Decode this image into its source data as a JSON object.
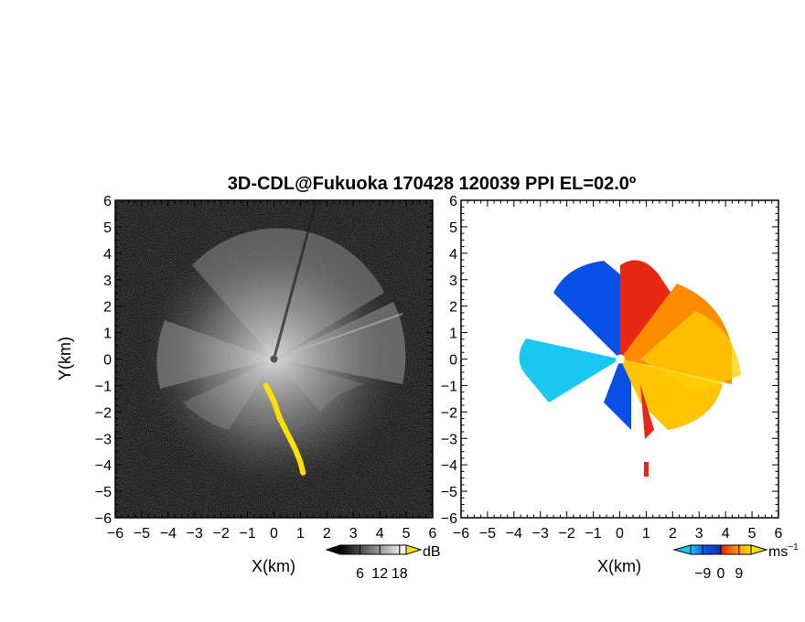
{
  "figure": {
    "title": "3D-CDL@Fukuoka 170428 120039 PPI EL=02.0º"
  },
  "colors": {
    "background_reflectivity": "#1e1e1e",
    "echo_gray": "#c8c8c8",
    "highlight_yellow": "#ffe000",
    "frame": "#000000",
    "vel_cyan": "#19c7f0",
    "vel_blue": "#0a50e6",
    "vel_red": "#e62814",
    "vel_orange": "#ff8c00",
    "vel_yellow": "#ffd000"
  },
  "chart_data": [
    {
      "type": "heatmap",
      "name": "reflectivity_ppi",
      "xlabel": "X(km)",
      "ylabel": "Y(km)",
      "xlim": [
        -6,
        6
      ],
      "ylim": [
        -6,
        6
      ],
      "xticks": [
        -6,
        -5,
        -4,
        -3,
        -2,
        -1,
        0,
        1,
        2,
        3,
        4,
        5,
        6
      ],
      "yticks": [
        -6,
        -5,
        -4,
        -3,
        -2,
        -1,
        0,
        1,
        2,
        3,
        4,
        5,
        6
      ],
      "radar_center": [
        0,
        0
      ],
      "echo_extent_km": 4.5,
      "highlight_trace": [
        [
          -0.3,
          -1.0
        ],
        [
          0.0,
          -1.6
        ],
        [
          0.2,
          -2.2
        ],
        [
          0.5,
          -2.8
        ],
        [
          0.8,
          -3.4
        ],
        [
          1.0,
          -3.9
        ],
        [
          1.1,
          -4.3
        ]
      ],
      "colorbar": {
        "unit": "dB",
        "ticks": [
          6,
          12,
          18
        ],
        "range": [
          0,
          20
        ],
        "colormap": "grayscale",
        "extend": "both"
      }
    },
    {
      "type": "heatmap",
      "name": "doppler_velocity_ppi",
      "xlabel": "X(km)",
      "ylabel": "",
      "xlim": [
        -6,
        6
      ],
      "ylim": [
        -6,
        6
      ],
      "xticks": [
        -6,
        -5,
        -4,
        -3,
        -2,
        -1,
        0,
        1,
        2,
        3,
        4,
        5,
        6
      ],
      "yticks": [
        -6,
        -5,
        -4,
        -3,
        -2,
        -1,
        0,
        1,
        2,
        3,
        4,
        5,
        6
      ],
      "radar_center": [
        0,
        0
      ],
      "colorbar": {
        "unit": "ms",
        "unit_exponent": "−1",
        "ticks": [
          "−9",
          "0",
          "9"
        ],
        "tick_values": [
          -9,
          0,
          9
        ],
        "range": [
          -15,
          15
        ],
        "colormap": "cyan-blue-red-orange-yellow",
        "extend": "both"
      }
    }
  ]
}
